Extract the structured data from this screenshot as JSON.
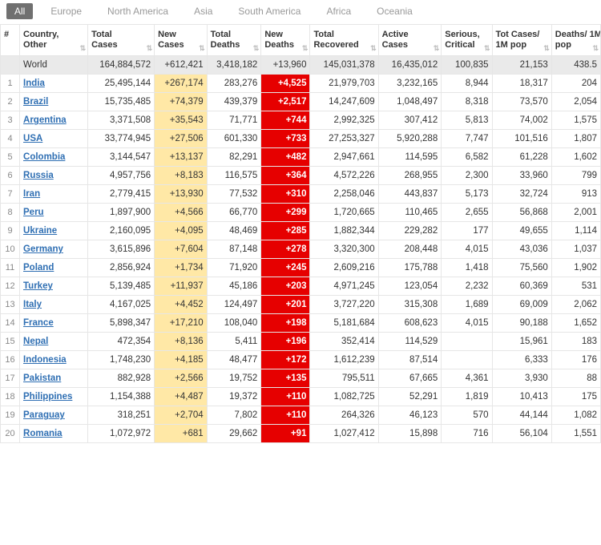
{
  "tabs": [
    "All",
    "Europe",
    "North America",
    "Asia",
    "South America",
    "Africa",
    "Oceania"
  ],
  "activeTab": 0,
  "columns": [
    "#",
    "Country, Other",
    "Total Cases",
    "New Cases",
    "Total Deaths",
    "New Deaths",
    "Total Recovered",
    "Active Cases",
    "Serious, Critical",
    "Tot Cases/ 1M pop",
    "Deaths/ 1M pop"
  ],
  "world": {
    "label": "World",
    "total": "164,884,572",
    "newc": "+612,421",
    "deaths": "3,418,182",
    "newd": "+13,960",
    "rec": "145,031,378",
    "active": "16,435,012",
    "crit": "100,835",
    "tcpm": "21,153",
    "dpm": "438.5"
  },
  "rows": [
    {
      "n": "1",
      "country": "India",
      "total": "25,495,144",
      "newc": "+267,174",
      "deaths": "283,276",
      "newd": "+4,525",
      "rec": "21,979,703",
      "active": "3,232,165",
      "crit": "8,944",
      "tcpm": "18,317",
      "dpm": "204"
    },
    {
      "n": "2",
      "country": "Brazil",
      "total": "15,735,485",
      "newc": "+74,379",
      "deaths": "439,379",
      "newd": "+2,517",
      "rec": "14,247,609",
      "active": "1,048,497",
      "crit": "8,318",
      "tcpm": "73,570",
      "dpm": "2,054"
    },
    {
      "n": "3",
      "country": "Argentina",
      "total": "3,371,508",
      "newc": "+35,543",
      "deaths": "71,771",
      "newd": "+744",
      "rec": "2,992,325",
      "active": "307,412",
      "crit": "5,813",
      "tcpm": "74,002",
      "dpm": "1,575"
    },
    {
      "n": "4",
      "country": "USA",
      "total": "33,774,945",
      "newc": "+27,506",
      "deaths": "601,330",
      "newd": "+733",
      "rec": "27,253,327",
      "active": "5,920,288",
      "crit": "7,747",
      "tcpm": "101,516",
      "dpm": "1,807"
    },
    {
      "n": "5",
      "country": "Colombia",
      "total": "3,144,547",
      "newc": "+13,137",
      "deaths": "82,291",
      "newd": "+482",
      "rec": "2,947,661",
      "active": "114,595",
      "crit": "6,582",
      "tcpm": "61,228",
      "dpm": "1,602"
    },
    {
      "n": "6",
      "country": "Russia",
      "total": "4,957,756",
      "newc": "+8,183",
      "deaths": "116,575",
      "newd": "+364",
      "rec": "4,572,226",
      "active": "268,955",
      "crit": "2,300",
      "tcpm": "33,960",
      "dpm": "799"
    },
    {
      "n": "7",
      "country": "Iran",
      "total": "2,779,415",
      "newc": "+13,930",
      "deaths": "77,532",
      "newd": "+310",
      "rec": "2,258,046",
      "active": "443,837",
      "crit": "5,173",
      "tcpm": "32,724",
      "dpm": "913"
    },
    {
      "n": "8",
      "country": "Peru",
      "total": "1,897,900",
      "newc": "+4,566",
      "deaths": "66,770",
      "newd": "+299",
      "rec": "1,720,665",
      "active": "110,465",
      "crit": "2,655",
      "tcpm": "56,868",
      "dpm": "2,001"
    },
    {
      "n": "9",
      "country": "Ukraine",
      "total": "2,160,095",
      "newc": "+4,095",
      "deaths": "48,469",
      "newd": "+285",
      "rec": "1,882,344",
      "active": "229,282",
      "crit": "177",
      "tcpm": "49,655",
      "dpm": "1,114"
    },
    {
      "n": "10",
      "country": "Germany",
      "total": "3,615,896",
      "newc": "+7,604",
      "deaths": "87,148",
      "newd": "+278",
      "rec": "3,320,300",
      "active": "208,448",
      "crit": "4,015",
      "tcpm": "43,036",
      "dpm": "1,037"
    },
    {
      "n": "11",
      "country": "Poland",
      "total": "2,856,924",
      "newc": "+1,734",
      "deaths": "71,920",
      "newd": "+245",
      "rec": "2,609,216",
      "active": "175,788",
      "crit": "1,418",
      "tcpm": "75,560",
      "dpm": "1,902"
    },
    {
      "n": "12",
      "country": "Turkey",
      "total": "5,139,485",
      "newc": "+11,937",
      "deaths": "45,186",
      "newd": "+203",
      "rec": "4,971,245",
      "active": "123,054",
      "crit": "2,232",
      "tcpm": "60,369",
      "dpm": "531"
    },
    {
      "n": "13",
      "country": "Italy",
      "total": "4,167,025",
      "newc": "+4,452",
      "deaths": "124,497",
      "newd": "+201",
      "rec": "3,727,220",
      "active": "315,308",
      "crit": "1,689",
      "tcpm": "69,009",
      "dpm": "2,062"
    },
    {
      "n": "14",
      "country": "France",
      "total": "5,898,347",
      "newc": "+17,210",
      "deaths": "108,040",
      "newd": "+198",
      "rec": "5,181,684",
      "active": "608,623",
      "crit": "4,015",
      "tcpm": "90,188",
      "dpm": "1,652"
    },
    {
      "n": "15",
      "country": "Nepal",
      "total": "472,354",
      "newc": "+8,136",
      "deaths": "5,411",
      "newd": "+196",
      "rec": "352,414",
      "active": "114,529",
      "crit": "",
      "tcpm": "15,961",
      "dpm": "183"
    },
    {
      "n": "16",
      "country": "Indonesia",
      "total": "1,748,230",
      "newc": "+4,185",
      "deaths": "48,477",
      "newd": "+172",
      "rec": "1,612,239",
      "active": "87,514",
      "crit": "",
      "tcpm": "6,333",
      "dpm": "176"
    },
    {
      "n": "17",
      "country": "Pakistan",
      "total": "882,928",
      "newc": "+2,566",
      "deaths": "19,752",
      "newd": "+135",
      "rec": "795,511",
      "active": "67,665",
      "crit": "4,361",
      "tcpm": "3,930",
      "dpm": "88"
    },
    {
      "n": "18",
      "country": "Philippines",
      "total": "1,154,388",
      "newc": "+4,487",
      "deaths": "19,372",
      "newd": "+110",
      "rec": "1,082,725",
      "active": "52,291",
      "crit": "1,819",
      "tcpm": "10,413",
      "dpm": "175"
    },
    {
      "n": "19",
      "country": "Paraguay",
      "total": "318,251",
      "newc": "+2,704",
      "deaths": "7,802",
      "newd": "+110",
      "rec": "264,326",
      "active": "46,123",
      "crit": "570",
      "tcpm": "44,144",
      "dpm": "1,082"
    },
    {
      "n": "20",
      "country": "Romania",
      "total": "1,072,972",
      "newc": "+681",
      "deaths": "29,662",
      "newd": "+91",
      "rec": "1,027,412",
      "active": "15,898",
      "crit": "716",
      "tcpm": "56,104",
      "dpm": "1,551"
    }
  ],
  "colors": {
    "newcases_bg": "#ffe8a6",
    "newdeaths_bg": "#e60000",
    "world_bg": "#eaeaea",
    "link": "#2f6fb3",
    "tab_active_bg": "#707070"
  }
}
